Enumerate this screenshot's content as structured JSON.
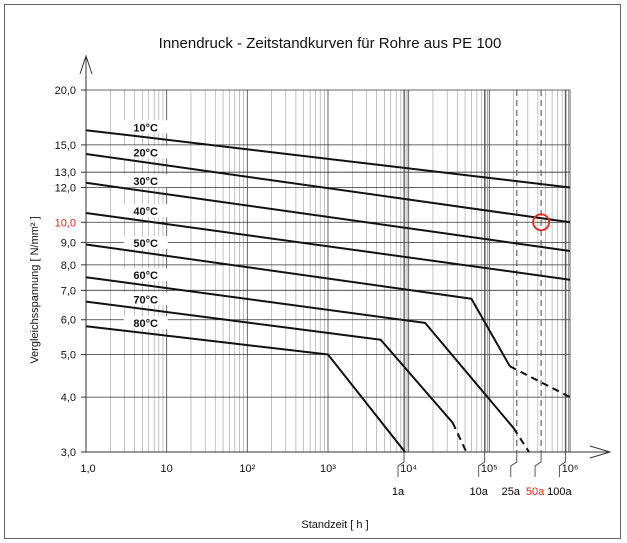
{
  "chart_data": {
    "type": "line",
    "title": "Innendruck - Zeitstandkurven für Rohre aus PE 100",
    "xlabel": "Standzeit  [ h ]",
    "ylabel": "Vergleichsspannung  [ N/mm² ]",
    "x_scale": "log",
    "y_scale": "log",
    "xlim": [
      1,
      1000000
    ],
    "ylim": [
      3,
      20
    ],
    "grid": true,
    "x_ticks": [
      {
        "value": 1,
        "label": "1,0"
      },
      {
        "value": 10,
        "label": "10"
      },
      {
        "value": 100,
        "label": "10²"
      },
      {
        "value": 1000,
        "label": "10³"
      },
      {
        "value": 10000,
        "label": "10⁴"
      },
      {
        "value": 100000,
        "label": "10⁵"
      },
      {
        "value": 1000000,
        "label": "10⁶"
      }
    ],
    "y_ticks": [
      {
        "value": 20,
        "label": "20,0"
      },
      {
        "value": 15,
        "label": "15,0"
      },
      {
        "value": 13,
        "label": "13,0"
      },
      {
        "value": 12,
        "label": "12,0"
      },
      {
        "value": 10,
        "label": "10,0",
        "color": "#e8231b"
      },
      {
        "value": 9,
        "label": "9,0"
      },
      {
        "value": 8,
        "label": "8,0"
      },
      {
        "value": 7,
        "label": "7,0"
      },
      {
        "value": 6,
        "label": "6,0"
      },
      {
        "value": 5,
        "label": "5,0"
      },
      {
        "value": 4,
        "label": "4,0"
      },
      {
        "value": 3,
        "label": "3,0"
      }
    ],
    "year_markers": [
      {
        "label": "1a",
        "hours": 8760,
        "style": "solid",
        "color": "#000000"
      },
      {
        "label": "10a",
        "hours": 87600,
        "style": "solid",
        "color": "#000000"
      },
      {
        "label": "25a",
        "hours": 219000,
        "style": "dashed",
        "color": "#000000"
      },
      {
        "label": "50a",
        "hours": 438000,
        "style": "dashed",
        "color": "#e8231b"
      },
      {
        "label": "100a",
        "hours": 876000,
        "style": "solid",
        "color": "#000000"
      }
    ],
    "series": [
      {
        "name": "10°C",
        "points": [
          [
            1,
            16.2
          ],
          [
            1000000,
            12.0
          ]
        ]
      },
      {
        "name": "20°C",
        "points": [
          [
            1,
            14.3
          ],
          [
            1000000,
            10.0
          ]
        ]
      },
      {
        "name": "30°C",
        "points": [
          [
            1,
            12.3
          ],
          [
            1000000,
            8.6
          ]
        ]
      },
      {
        "name": "40°C",
        "points": [
          [
            1,
            10.5
          ],
          [
            1000000,
            7.4
          ]
        ]
      },
      {
        "name": "50°C",
        "points": [
          [
            1,
            8.9
          ],
          [
            60000,
            6.7
          ],
          [
            180000,
            4.7
          ]
        ],
        "dashed_tail": [
          [
            180000,
            4.7
          ],
          [
            1000000,
            4.0
          ]
        ]
      },
      {
        "name": "60°C",
        "points": [
          [
            1,
            7.5
          ],
          [
            16000,
            5.9
          ],
          [
            200000,
            3.4
          ]
        ],
        "dashed_tail": [
          [
            200000,
            3.4
          ],
          [
            310000,
            3.0
          ]
        ]
      },
      {
        "name": "70°C",
        "points": [
          [
            1,
            6.6
          ],
          [
            4500,
            5.4
          ],
          [
            35000,
            3.5
          ]
        ],
        "dashed_tail": [
          [
            35000,
            3.5
          ],
          [
            52000,
            3.0
          ]
        ]
      },
      {
        "name": "80°C",
        "points": [
          [
            1,
            5.8
          ],
          [
            1000,
            5.0
          ],
          [
            9000,
            3.0
          ]
        ]
      }
    ],
    "highlight": {
      "x": 438000,
      "y": 10.0,
      "color": "#e8231b"
    }
  }
}
